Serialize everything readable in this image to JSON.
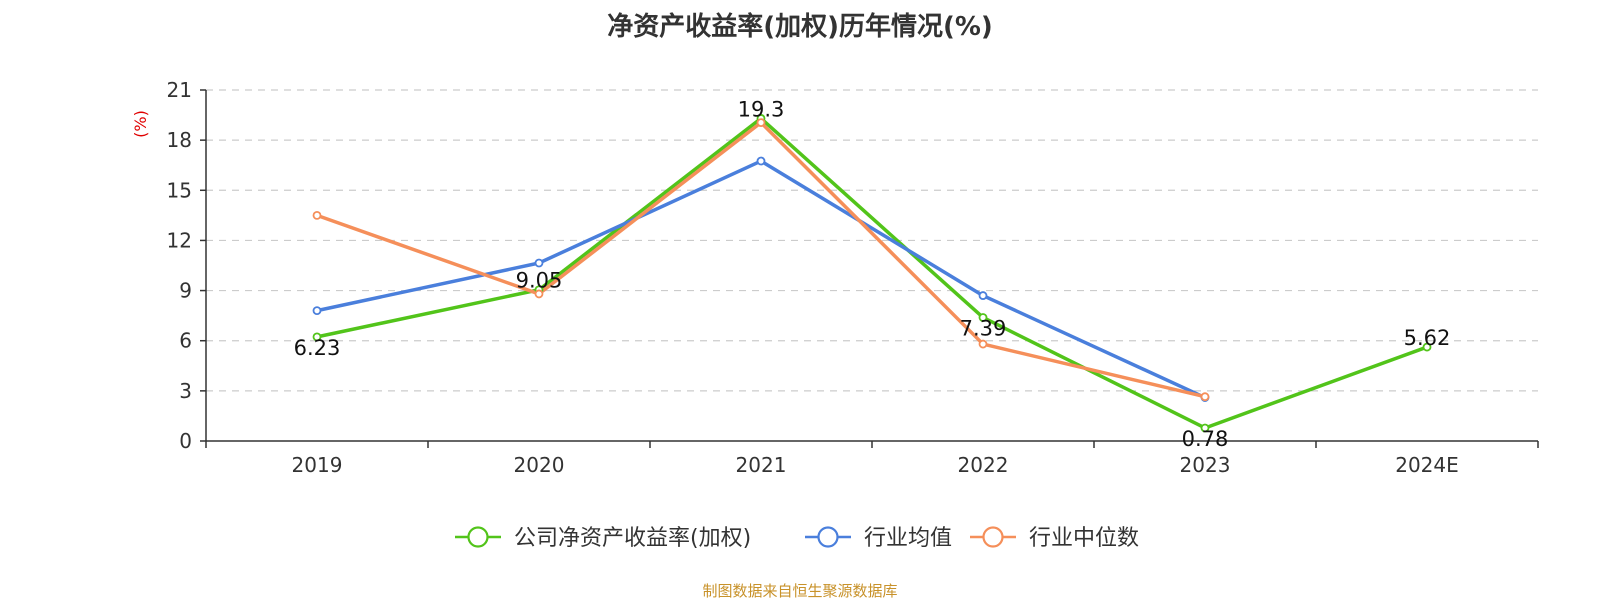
{
  "chart_data": {
    "type": "line",
    "title": "净资产收益率(加权)历年情况(%)",
    "ylabel": "(%)",
    "xlabel": "",
    "categories": [
      "2019",
      "2020",
      "2021",
      "2022",
      "2023",
      "2024E"
    ],
    "ylim": [
      0,
      21
    ],
    "yticks": [
      0,
      3,
      6,
      9,
      12,
      15,
      18,
      21
    ],
    "grid": true,
    "legend_position": "bottom-center",
    "series": [
      {
        "name": "公司净资产收益率(加权)",
        "color": "#52c41a",
        "values": [
          6.23,
          9.05,
          19.3,
          7.39,
          0.78,
          5.62
        ],
        "labels": [
          "6.23",
          "9.05",
          "19.3",
          "7.39",
          "0.78",
          "5.62"
        ],
        "show_labels": true
      },
      {
        "name": "行业均值",
        "color": "#4a7fdc",
        "values": [
          7.8,
          10.65,
          16.75,
          8.7,
          2.6,
          null
        ],
        "show_labels": false
      },
      {
        "name": "行业中位数",
        "color": "#f58f5a",
        "values": [
          13.5,
          8.8,
          19.05,
          5.8,
          2.65,
          null
        ],
        "show_labels": false
      }
    ]
  },
  "source_note": "制图数据来自恒生聚源数据库",
  "colors": {
    "axis": "#333333",
    "grid": "#cccccc",
    "ylabel": "#e00000",
    "source": "#c8922a"
  }
}
